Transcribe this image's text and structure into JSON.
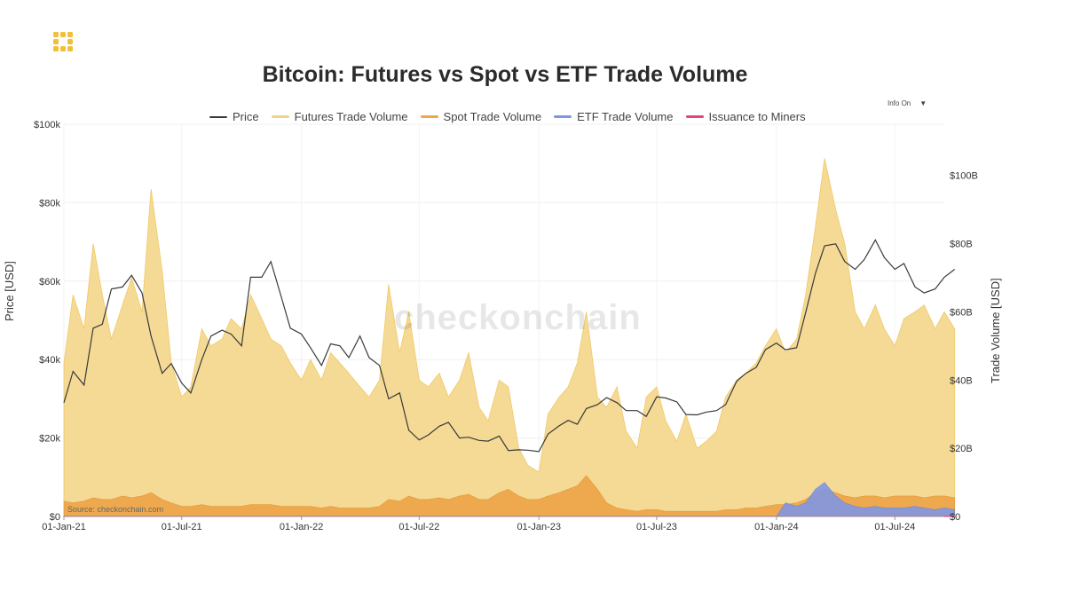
{
  "page": {
    "title": "Bitcoin: Futures vs Spot vs ETF Trade Volume",
    "info_toggle": "Info On",
    "watermark": "checkonchain",
    "source": "Source: checkonchain.com"
  },
  "colors": {
    "price": "#3a3a3a",
    "futures": "#f3d384",
    "spot": "#eda64a",
    "etf": "#7f96e3",
    "issuance": "#e0457b",
    "logo": "#f2c037"
  },
  "chart_data": {
    "type": "area",
    "title": "Bitcoin: Futures vs Spot vs ETF Trade Volume",
    "xlabel": "",
    "ylabel": "Price [USD]",
    "y2label": "Trade Volume [USD]",
    "x_ticks": [
      "01-Jan-21",
      "01-Jul-21",
      "01-Jan-22",
      "01-Jul-22",
      "01-Jan-23",
      "01-Jul-23",
      "01-Jan-24",
      "01-Jul-24"
    ],
    "y_ticks": [
      "$0",
      "$20k",
      "$40k",
      "$60k",
      "$80k",
      "$100k"
    ],
    "y2_ticks": [
      "$0",
      "$20B",
      "$40B",
      "$60B",
      "$80B",
      "$100B"
    ],
    "ylim": [
      0,
      100000
    ],
    "y2lim": [
      0,
      115000000000
    ],
    "legend": [
      "Price",
      "Futures Trade Volume",
      "Spot Trade Volume",
      "ETF Trade Volume",
      "Issuance to Miners"
    ],
    "legend_position": "top-center",
    "grid": true,
    "x": [
      "2021-01-01",
      "2021-01-15",
      "2021-02-01",
      "2021-02-15",
      "2021-03-01",
      "2021-03-15",
      "2021-04-01",
      "2021-04-15",
      "2021-05-01",
      "2021-05-15",
      "2021-06-01",
      "2021-06-15",
      "2021-07-01",
      "2021-07-15",
      "2021-08-01",
      "2021-08-15",
      "2021-09-01",
      "2021-09-15",
      "2021-10-01",
      "2021-10-15",
      "2021-11-01",
      "2021-11-15",
      "2021-12-01",
      "2021-12-15",
      "2022-01-01",
      "2022-01-15",
      "2022-02-01",
      "2022-02-15",
      "2022-03-01",
      "2022-03-15",
      "2022-04-01",
      "2022-04-15",
      "2022-05-01",
      "2022-05-15",
      "2022-06-01",
      "2022-06-15",
      "2022-07-01",
      "2022-07-15",
      "2022-08-01",
      "2022-08-15",
      "2022-09-01",
      "2022-09-15",
      "2022-10-01",
      "2022-10-15",
      "2022-11-01",
      "2022-11-15",
      "2022-12-01",
      "2022-12-15",
      "2023-01-01",
      "2023-01-15",
      "2023-02-01",
      "2023-02-15",
      "2023-03-01",
      "2023-03-15",
      "2023-04-01",
      "2023-04-15",
      "2023-05-01",
      "2023-05-15",
      "2023-06-01",
      "2023-06-15",
      "2023-07-01",
      "2023-07-15",
      "2023-08-01",
      "2023-08-15",
      "2023-09-01",
      "2023-09-15",
      "2023-10-01",
      "2023-10-15",
      "2023-11-01",
      "2023-11-15",
      "2023-12-01",
      "2023-12-15",
      "2024-01-01",
      "2024-01-15",
      "2024-02-01",
      "2024-02-15",
      "2024-03-01",
      "2024-03-15",
      "2024-04-01",
      "2024-04-15",
      "2024-05-01",
      "2024-05-15",
      "2024-06-01",
      "2024-06-15",
      "2024-07-01",
      "2024-07-15",
      "2024-08-01",
      "2024-08-15",
      "2024-09-01",
      "2024-09-15",
      "2024-10-01"
    ],
    "series": [
      {
        "name": "Price",
        "axis": "left",
        "kind": "line",
        "values": [
          29000,
          37000,
          33500,
          48000,
          49000,
          58000,
          58500,
          61500,
          57000,
          46000,
          36500,
          39000,
          34000,
          31500,
          40000,
          46000,
          47500,
          46500,
          43500,
          61000,
          61000,
          65000,
          56000,
          48000,
          46500,
          43000,
          38500,
          44000,
          43500,
          40500,
          46000,
          40500,
          38500,
          30000,
          31500,
          22000,
          19500,
          20800,
          23000,
          24000,
          20000,
          20200,
          19400,
          19200,
          20500,
          16800,
          17000,
          16900,
          16550,
          21000,
          23100,
          24500,
          23500,
          27500,
          28500,
          30300,
          29000,
          27000,
          27000,
          25500,
          30500,
          30200,
          29200,
          26000,
          25900,
          26600,
          27000,
          28500,
          34500,
          36500,
          38000,
          42500,
          44200,
          42500,
          43000,
          52000,
          62000,
          69000,
          69500,
          65000,
          63000,
          65500,
          70500,
          66000,
          63000,
          64500,
          58500,
          57000,
          58000,
          61000,
          63000
        ]
      },
      {
        "name": "Futures Trade Volume",
        "axis": "right",
        "kind": "area",
        "values": [
          45000000000,
          65000000000,
          55000000000,
          80000000000,
          65000000000,
          52000000000,
          62000000000,
          70000000000,
          60000000000,
          96000000000,
          72000000000,
          45000000000,
          35000000000,
          38000000000,
          55000000000,
          50000000000,
          52000000000,
          58000000000,
          55000000000,
          65000000000,
          58000000000,
          52000000000,
          50000000000,
          45000000000,
          40000000000,
          46000000000,
          40000000000,
          48000000000,
          45000000000,
          42000000000,
          38000000000,
          35000000000,
          40000000000,
          68000000000,
          48000000000,
          60000000000,
          40000000000,
          38000000000,
          42000000000,
          35000000000,
          40000000000,
          48000000000,
          32000000000,
          28000000000,
          40000000000,
          38000000000,
          20000000000,
          15000000000,
          13000000000,
          30000000000,
          35000000000,
          38000000000,
          45000000000,
          60000000000,
          35000000000,
          32000000000,
          38000000000,
          25000000000,
          20000000000,
          35000000000,
          38000000000,
          28000000000,
          22000000000,
          30000000000,
          20000000000,
          22000000000,
          25000000000,
          35000000000,
          40000000000,
          42000000000,
          45000000000,
          50000000000,
          55000000000,
          48000000000,
          52000000000,
          65000000000,
          85000000000,
          105000000000,
          90000000000,
          80000000000,
          60000000000,
          55000000000,
          62000000000,
          55000000000,
          50000000000,
          58000000000,
          60000000000,
          62000000000,
          55000000000,
          60000000000,
          55000000000
        ]
      },
      {
        "name": "Spot Trade Volume",
        "axis": "right",
        "kind": "area",
        "values": [
          4500000000,
          4000000000,
          4500000000,
          5500000000,
          5000000000,
          5000000000,
          6000000000,
          5500000000,
          6000000000,
          7000000000,
          5000000000,
          4000000000,
          3000000000,
          3000000000,
          3500000000,
          3000000000,
          3000000000,
          3000000000,
          3000000000,
          3500000000,
          3500000000,
          3500000000,
          3000000000,
          3000000000,
          3000000000,
          3000000000,
          2500000000,
          3000000000,
          2500000000,
          2500000000,
          2500000000,
          2500000000,
          3000000000,
          5000000000,
          4500000000,
          6000000000,
          5000000000,
          5000000000,
          5500000000,
          5000000000,
          6000000000,
          6500000000,
          5000000000,
          5000000000,
          7000000000,
          8000000000,
          6000000000,
          5000000000,
          5000000000,
          6000000000,
          7000000000,
          8000000000,
          9000000000,
          12000000000,
          8000000000,
          4000000000,
          2500000000,
          2000000000,
          1500000000,
          2000000000,
          2000000000,
          1500000000,
          1500000000,
          1500000000,
          1500000000,
          1500000000,
          1500000000,
          2000000000,
          2000000000,
          2500000000,
          2500000000,
          3000000000,
          3500000000,
          3500000000,
          4000000000,
          5000000000,
          7000000000,
          8000000000,
          7000000000,
          6000000000,
          5500000000,
          6000000000,
          6000000000,
          5500000000,
          6000000000,
          6000000000,
          6000000000,
          5500000000,
          6000000000,
          6000000000,
          5500000000
        ]
      },
      {
        "name": "ETF Trade Volume",
        "axis": "right",
        "kind": "area",
        "values": [
          0,
          0,
          0,
          0,
          0,
          0,
          0,
          0,
          0,
          0,
          0,
          0,
          0,
          0,
          0,
          0,
          0,
          0,
          0,
          0,
          0,
          0,
          0,
          0,
          0,
          0,
          0,
          0,
          0,
          0,
          0,
          0,
          0,
          0,
          0,
          0,
          0,
          0,
          0,
          0,
          0,
          0,
          0,
          0,
          0,
          0,
          0,
          0,
          0,
          0,
          0,
          0,
          0,
          0,
          0,
          0,
          0,
          0,
          0,
          0,
          0,
          0,
          0,
          0,
          0,
          0,
          0,
          0,
          0,
          0,
          0,
          0,
          0,
          4000000000,
          3000000000,
          4000000000,
          8000000000,
          10000000000,
          6000000000,
          4000000000,
          3000000000,
          2500000000,
          3000000000,
          2500000000,
          2500000000,
          2500000000,
          3000000000,
          2500000000,
          2000000000,
          2500000000,
          2000000000
        ]
      },
      {
        "name": "Issuance to Miners",
        "axis": "right",
        "kind": "area",
        "values": [
          60000000,
          60000000,
          60000000,
          60000000,
          60000000,
          60000000,
          60000000,
          60000000,
          60000000,
          60000000,
          60000000,
          60000000,
          60000000,
          60000000,
          60000000,
          60000000,
          60000000,
          60000000,
          60000000,
          60000000,
          60000000,
          60000000,
          60000000,
          60000000,
          60000000,
          60000000,
          60000000,
          60000000,
          60000000,
          60000000,
          60000000,
          60000000,
          60000000,
          60000000,
          60000000,
          60000000,
          60000000,
          60000000,
          60000000,
          60000000,
          60000000,
          60000000,
          60000000,
          60000000,
          60000000,
          60000000,
          60000000,
          60000000,
          60000000,
          60000000,
          60000000,
          60000000,
          60000000,
          60000000,
          60000000,
          60000000,
          60000000,
          60000000,
          60000000,
          60000000,
          60000000,
          60000000,
          60000000,
          60000000,
          60000000,
          60000000,
          60000000,
          60000000,
          60000000,
          60000000,
          60000000,
          60000000,
          60000000,
          60000000,
          60000000,
          60000000,
          60000000,
          60000000,
          60000000,
          60000000,
          60000000,
          60000000,
          60000000,
          60000000,
          60000000,
          60000000,
          60000000,
          60000000,
          60000000,
          60000000,
          60000000
        ]
      }
    ]
  }
}
